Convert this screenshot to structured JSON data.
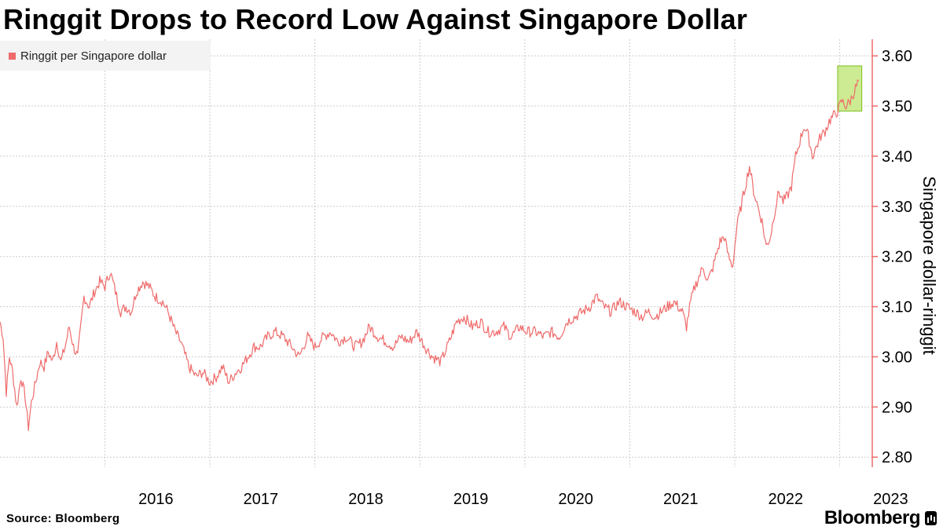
{
  "header": {
    "title": "Ringgit Drops to Record Low Against Singapore Dollar"
  },
  "footer": {
    "source": "Source: Bloomberg",
    "brand": "Bloomberg"
  },
  "colors": {
    "series": "#ef6b6b",
    "axis": "#ef6b6b",
    "grid": "#cccccc",
    "highlight_fill": "#c4e87f",
    "highlight_stroke": "#7fbf1f"
  },
  "chart_data": {
    "type": "line",
    "title": "Ringgit Drops to Record Low Against Singapore Dollar",
    "xlabel": "",
    "ylabel": "Singapore dollar-ringgit",
    "legend": {
      "position": "top-left",
      "entries": [
        "Ringgit per Singapore dollar"
      ]
    },
    "grid": true,
    "xlim": [
      2015.0,
      2023.31
    ],
    "ylim": [
      2.78,
      3.63
    ],
    "x_ticks": [
      2016,
      2017,
      2018,
      2019,
      2020,
      2021,
      2022,
      2023
    ],
    "x_tick_labels": [
      "2016",
      "2017",
      "2018",
      "2019",
      "2020",
      "2021",
      "2022",
      "2023"
    ],
    "y_ticks": [
      2.8,
      2.9,
      3.0,
      3.1,
      3.2,
      3.3,
      3.4,
      3.5,
      3.6
    ],
    "y_tick_labels": [
      "2.80",
      "2.90",
      "3.00",
      "3.10",
      "3.20",
      "3.30",
      "3.40",
      "3.50",
      "3.60"
    ],
    "highlight": {
      "x": [
        2022.98,
        2023.21
      ],
      "y": [
        3.49,
        3.58
      ]
    },
    "series": [
      {
        "name": "Ringgit per Singapore dollar",
        "x": [
          2015.0,
          2015.03,
          2015.06,
          2015.09,
          2015.12,
          2015.16,
          2015.2,
          2015.24,
          2015.27,
          2015.3,
          2015.34,
          2015.38,
          2015.42,
          2015.46,
          2015.5,
          2015.54,
          2015.58,
          2015.62,
          2015.66,
          2015.7,
          2015.74,
          2015.8,
          2015.85,
          2015.9,
          2015.95,
          2016.0,
          2016.05,
          2016.1,
          2016.15,
          2016.2,
          2016.25,
          2016.3,
          2016.36,
          2016.42,
          2016.48,
          2016.55,
          2016.6,
          2016.67,
          2016.72,
          2016.8,
          2016.87,
          2016.93,
          2017.0,
          2017.06,
          2017.12,
          2017.18,
          2017.25,
          2017.3,
          2017.36,
          2017.42,
          2017.48,
          2017.55,
          2017.62,
          2017.7,
          2017.78,
          2017.85,
          2017.93,
          2018.0,
          2018.08,
          2018.15,
          2018.22,
          2018.3,
          2018.38,
          2018.45,
          2018.52,
          2018.6,
          2018.68,
          2018.75,
          2018.82,
          2018.9,
          2018.97,
          2019.05,
          2019.12,
          2019.2,
          2019.28,
          2019.35,
          2019.42,
          2019.5,
          2019.58,
          2019.65,
          2019.72,
          2019.8,
          2019.87,
          2019.95,
          2020.02,
          2020.1,
          2020.18,
          2020.25,
          2020.33,
          2020.4,
          2020.48,
          2020.55,
          2020.62,
          2020.68,
          2020.75,
          2020.82,
          2020.9,
          2020.97,
          2021.05,
          2021.12,
          2021.18,
          2021.24,
          2021.3,
          2021.36,
          2021.42,
          2021.46,
          2021.5,
          2021.54,
          2021.58,
          2021.62,
          2021.66,
          2021.7,
          2021.74,
          2021.78,
          2021.82,
          2021.86,
          2021.9,
          2021.94,
          2021.98,
          2022.02,
          2022.06,
          2022.1,
          2022.14,
          2022.18,
          2022.22,
          2022.26,
          2022.3,
          2022.34,
          2022.38,
          2022.42,
          2022.46,
          2022.5,
          2022.54,
          2022.58,
          2022.62,
          2022.66,
          2022.7,
          2022.74,
          2022.78,
          2022.82,
          2022.86,
          2022.9,
          2022.94,
          2022.98,
          2023.02,
          2023.06,
          2023.1,
          2023.14,
          2023.18
        ],
        "values": [
          3.07,
          3.04,
          2.93,
          3.0,
          2.97,
          2.9,
          2.96,
          2.92,
          2.86,
          2.91,
          2.95,
          2.99,
          2.98,
          3.01,
          2.99,
          3.03,
          2.99,
          3.02,
          3.06,
          3.02,
          3.0,
          3.12,
          3.1,
          3.13,
          3.15,
          3.14,
          3.17,
          3.13,
          3.09,
          3.1,
          3.09,
          3.13,
          3.15,
          3.14,
          3.12,
          3.11,
          3.09,
          3.05,
          3.03,
          2.98,
          2.96,
          2.97,
          2.95,
          2.96,
          2.98,
          2.95,
          2.97,
          2.98,
          3.0,
          3.02,
          3.02,
          3.04,
          3.05,
          3.04,
          3.02,
          3.0,
          3.04,
          3.02,
          3.04,
          3.05,
          3.03,
          3.04,
          3.02,
          3.03,
          3.06,
          3.04,
          3.03,
          3.02,
          3.04,
          3.03,
          3.05,
          3.02,
          3.0,
          2.99,
          3.03,
          3.07,
          3.08,
          3.06,
          3.07,
          3.05,
          3.05,
          3.06,
          3.04,
          3.06,
          3.05,
          3.05,
          3.04,
          3.05,
          3.04,
          3.07,
          3.08,
          3.09,
          3.1,
          3.12,
          3.1,
          3.09,
          3.11,
          3.1,
          3.09,
          3.08,
          3.09,
          3.08,
          3.09,
          3.1,
          3.11,
          3.1,
          3.09,
          3.06,
          3.11,
          3.14,
          3.16,
          3.18,
          3.15,
          3.17,
          3.2,
          3.23,
          3.24,
          3.2,
          3.18,
          3.26,
          3.3,
          3.34,
          3.38,
          3.33,
          3.3,
          3.27,
          3.22,
          3.24,
          3.29,
          3.33,
          3.31,
          3.32,
          3.34,
          3.4,
          3.43,
          3.46,
          3.44,
          3.4,
          3.42,
          3.44,
          3.45,
          3.47,
          3.48,
          3.49,
          3.51,
          3.5,
          3.51,
          3.53,
          3.55
        ]
      }
    ]
  }
}
